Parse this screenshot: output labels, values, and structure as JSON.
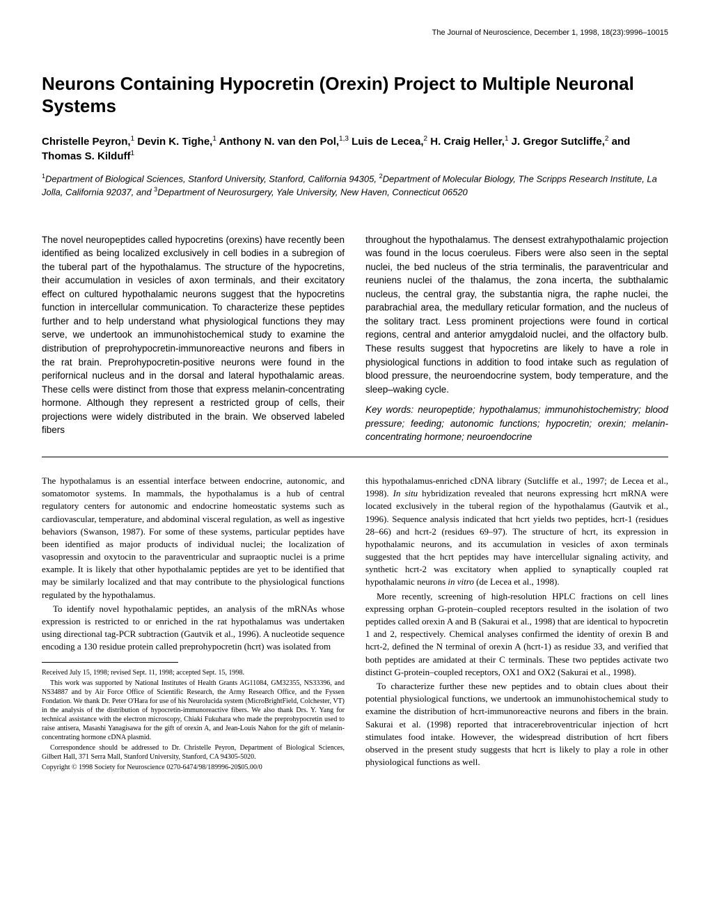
{
  "running_head": "The Journal of Neuroscience, December 1, 1998, 18(23):9996–10015",
  "title": "Neurons Containing Hypocretin (Orexin) Project to Multiple Neuronal Systems",
  "authors_html": "Christelle Peyron,<sup>1</sup> Devin K. Tighe,<sup>1</sup> Anthony N. van den Pol,<sup>1,3</sup> Luis de Lecea,<sup>2</sup> H. Craig Heller,<sup>1</sup> J. Gregor Sutcliffe,<sup>2</sup> and Thomas S. Kilduff<sup>1</sup>",
  "affiliations_html": "<sup>1</sup>Department of Biological Sciences, Stanford University, Stanford, California 94305, <sup>2</sup>Department of Molecular Biology, The Scripps Research Institute, La Jolla, California 92037, and <sup>3</sup>Department of Neurosurgery, Yale University, New Haven, Connecticut 06520",
  "abstract": {
    "left": "The novel neuropeptides called hypocretins (orexins) have recently been identified as being localized exclusively in cell bodies in a subregion of the tuberal part of the hypothalamus. The structure of the hypocretins, their accumulation in vesicles of axon terminals, and their excitatory effect on cultured hypothalamic neurons suggest that the hypocretins function in intercellular communication. To characterize these peptides further and to help understand what physiological functions they may serve, we undertook an immunohistochemical study to examine the distribution of preprohypocretin-immunoreactive neurons and fibers in the rat brain. Preprohypocretin-positive neurons were found in the perifornical nucleus and in the dorsal and lateral hypothalamic areas. These cells were distinct from those that express melanin-concentrating hormone. Although they represent a restricted group of cells, their projections were widely distributed in the brain. We observed labeled fibers",
    "right": "throughout the hypothalamus. The densest extrahypothalamic projection was found in the locus coeruleus. Fibers were also seen in the septal nuclei, the bed nucleus of the stria terminalis, the paraventricular and reuniens nuclei of the thalamus, the zona incerta, the subthalamic nucleus, the central gray, the substantia nigra, the raphe nuclei, the parabrachial area, the medullary reticular formation, and the nucleus of the solitary tract. Less prominent projections were found in cortical regions, central and anterior amygdaloid nuclei, and the olfactory bulb. These results suggest that hypocretins are likely to have a role in physiological functions in addition to food intake such as regulation of blood pressure, the neuroendocrine system, body temperature, and the sleep–waking cycle.",
    "keywords": "Key words: neuropeptide; hypothalamus; immunohistochemistry; blood pressure; feeding; autonomic functions; hypocretin; orexin; melanin-concentrating hormone; neuroendocrine"
  },
  "body": {
    "left_p1": "The hypothalamus is an essential interface between endocrine, autonomic, and somatomotor systems. In mammals, the hypothalamus is a hub of central regulatory centers for autonomic and endocrine homeostatic systems such as cardiovascular, temperature, and abdominal visceral regulation, as well as ingestive behaviors (Swanson, 1987). For some of these systems, particular peptides have been identified as major products of individual nuclei; the localization of vasopressin and oxytocin to the paraventricular and supraoptic nuclei is a prime example. It is likely that other hypothalamic peptides are yet to be identified that may be similarly localized and that may contribute to the physiological functions regulated by the hypothalamus.",
    "left_p2": "To identify novel hypothalamic peptides, an analysis of the mRNAs whose expression is restricted to or enriched in the rat hypothalamus was undertaken using directional tag-PCR subtraction (Gautvik et al., 1996). A nucleotide sequence encoding a 130 residue protein called preprohypocretin (hcrt) was isolated from",
    "right_p1_html": "this hypothalamus-enriched cDNA library (Sutcliffe et al., 1997; de Lecea et al., 1998). <em>In situ</em> hybridization revealed that neurons expressing hcrt mRNA were located exclusively in the tuberal region of the hypothalamus (Gautvik et al., 1996). Sequence analysis indicated that hcrt yields two peptides, hcrt-1 (residues 28–66) and hcrt-2 (residues 69–97). The structure of hcrt, its expression in hypothalamic neurons, and its accumulation in vesicles of axon terminals suggested that the hcrt peptides may have intercellular signaling activity, and synthetic hcrt-2 was excitatory when applied to synaptically coupled rat hypothalamic neurons <em>in vitro</em> (de Lecea et al., 1998).",
    "right_p2": "More recently, screening of high-resolution HPLC fractions on cell lines expressing orphan G-protein–coupled receptors resulted in the isolation of two peptides called orexin A and B (Sakurai et al., 1998) that are identical to hypocretin 1 and 2, respectively. Chemical analyses confirmed the identity of orexin B and hcrt-2, defined the N terminal of orexin A (hcrt-1) as residue 33, and verified that both peptides are amidated at their C terminals. These two peptides activate two distinct G-protein–coupled receptors, OX1 and OX2 (Sakurai et al., 1998).",
    "right_p3": "To characterize further these new peptides and to obtain clues about their potential physiological functions, we undertook an immunohistochemical study to examine the distribution of hcrt-immunoreactive neurons and fibers in the brain. Sakurai et al. (1998) reported that intracerebroventricular injection of hcrt stimulates food intake. However, the widespread distribution of hcrt fibers observed in the present study suggests that hcrt is likely to play a role in other physiological functions as well."
  },
  "footnotes": {
    "received": "Received July 15, 1998; revised Sept. 11, 1998; accepted Sept. 15, 1998.",
    "support": "This work was supported by National Institutes of Health Grants AG11084, GM32355, NS33396, and NS34887 and by Air Force Office of Scientific Research, the Army Research Office, and the Fyssen Fondation. We thank Dr. Peter O'Hara for use of his Neurolucida system (MicroBrightField, Colchester, VT) in the analysis of the distribution of hypocretin-immunoreactive fibers. We also thank Drs. Y. Yang for technical assistance with the electron microscopy, Chiaki Fukuhara who made the preprohypocretin used to raise antisera, Masashi Yanagisawa for the gift of orexin A, and Jean-Louis Nahon for the gift of melanin-concentrating hormone cDNA plasmid.",
    "correspondence": "Correspondence should be addressed to Dr. Christelle Peyron, Department of Biological Sciences, Gilbert Hall, 371 Serra Mall, Stanford University, Stanford, CA 94305-5020.",
    "copyright": "Copyright © 1998 Society for Neuroscience   0270-6474/98/189996-20$05.00/0"
  }
}
